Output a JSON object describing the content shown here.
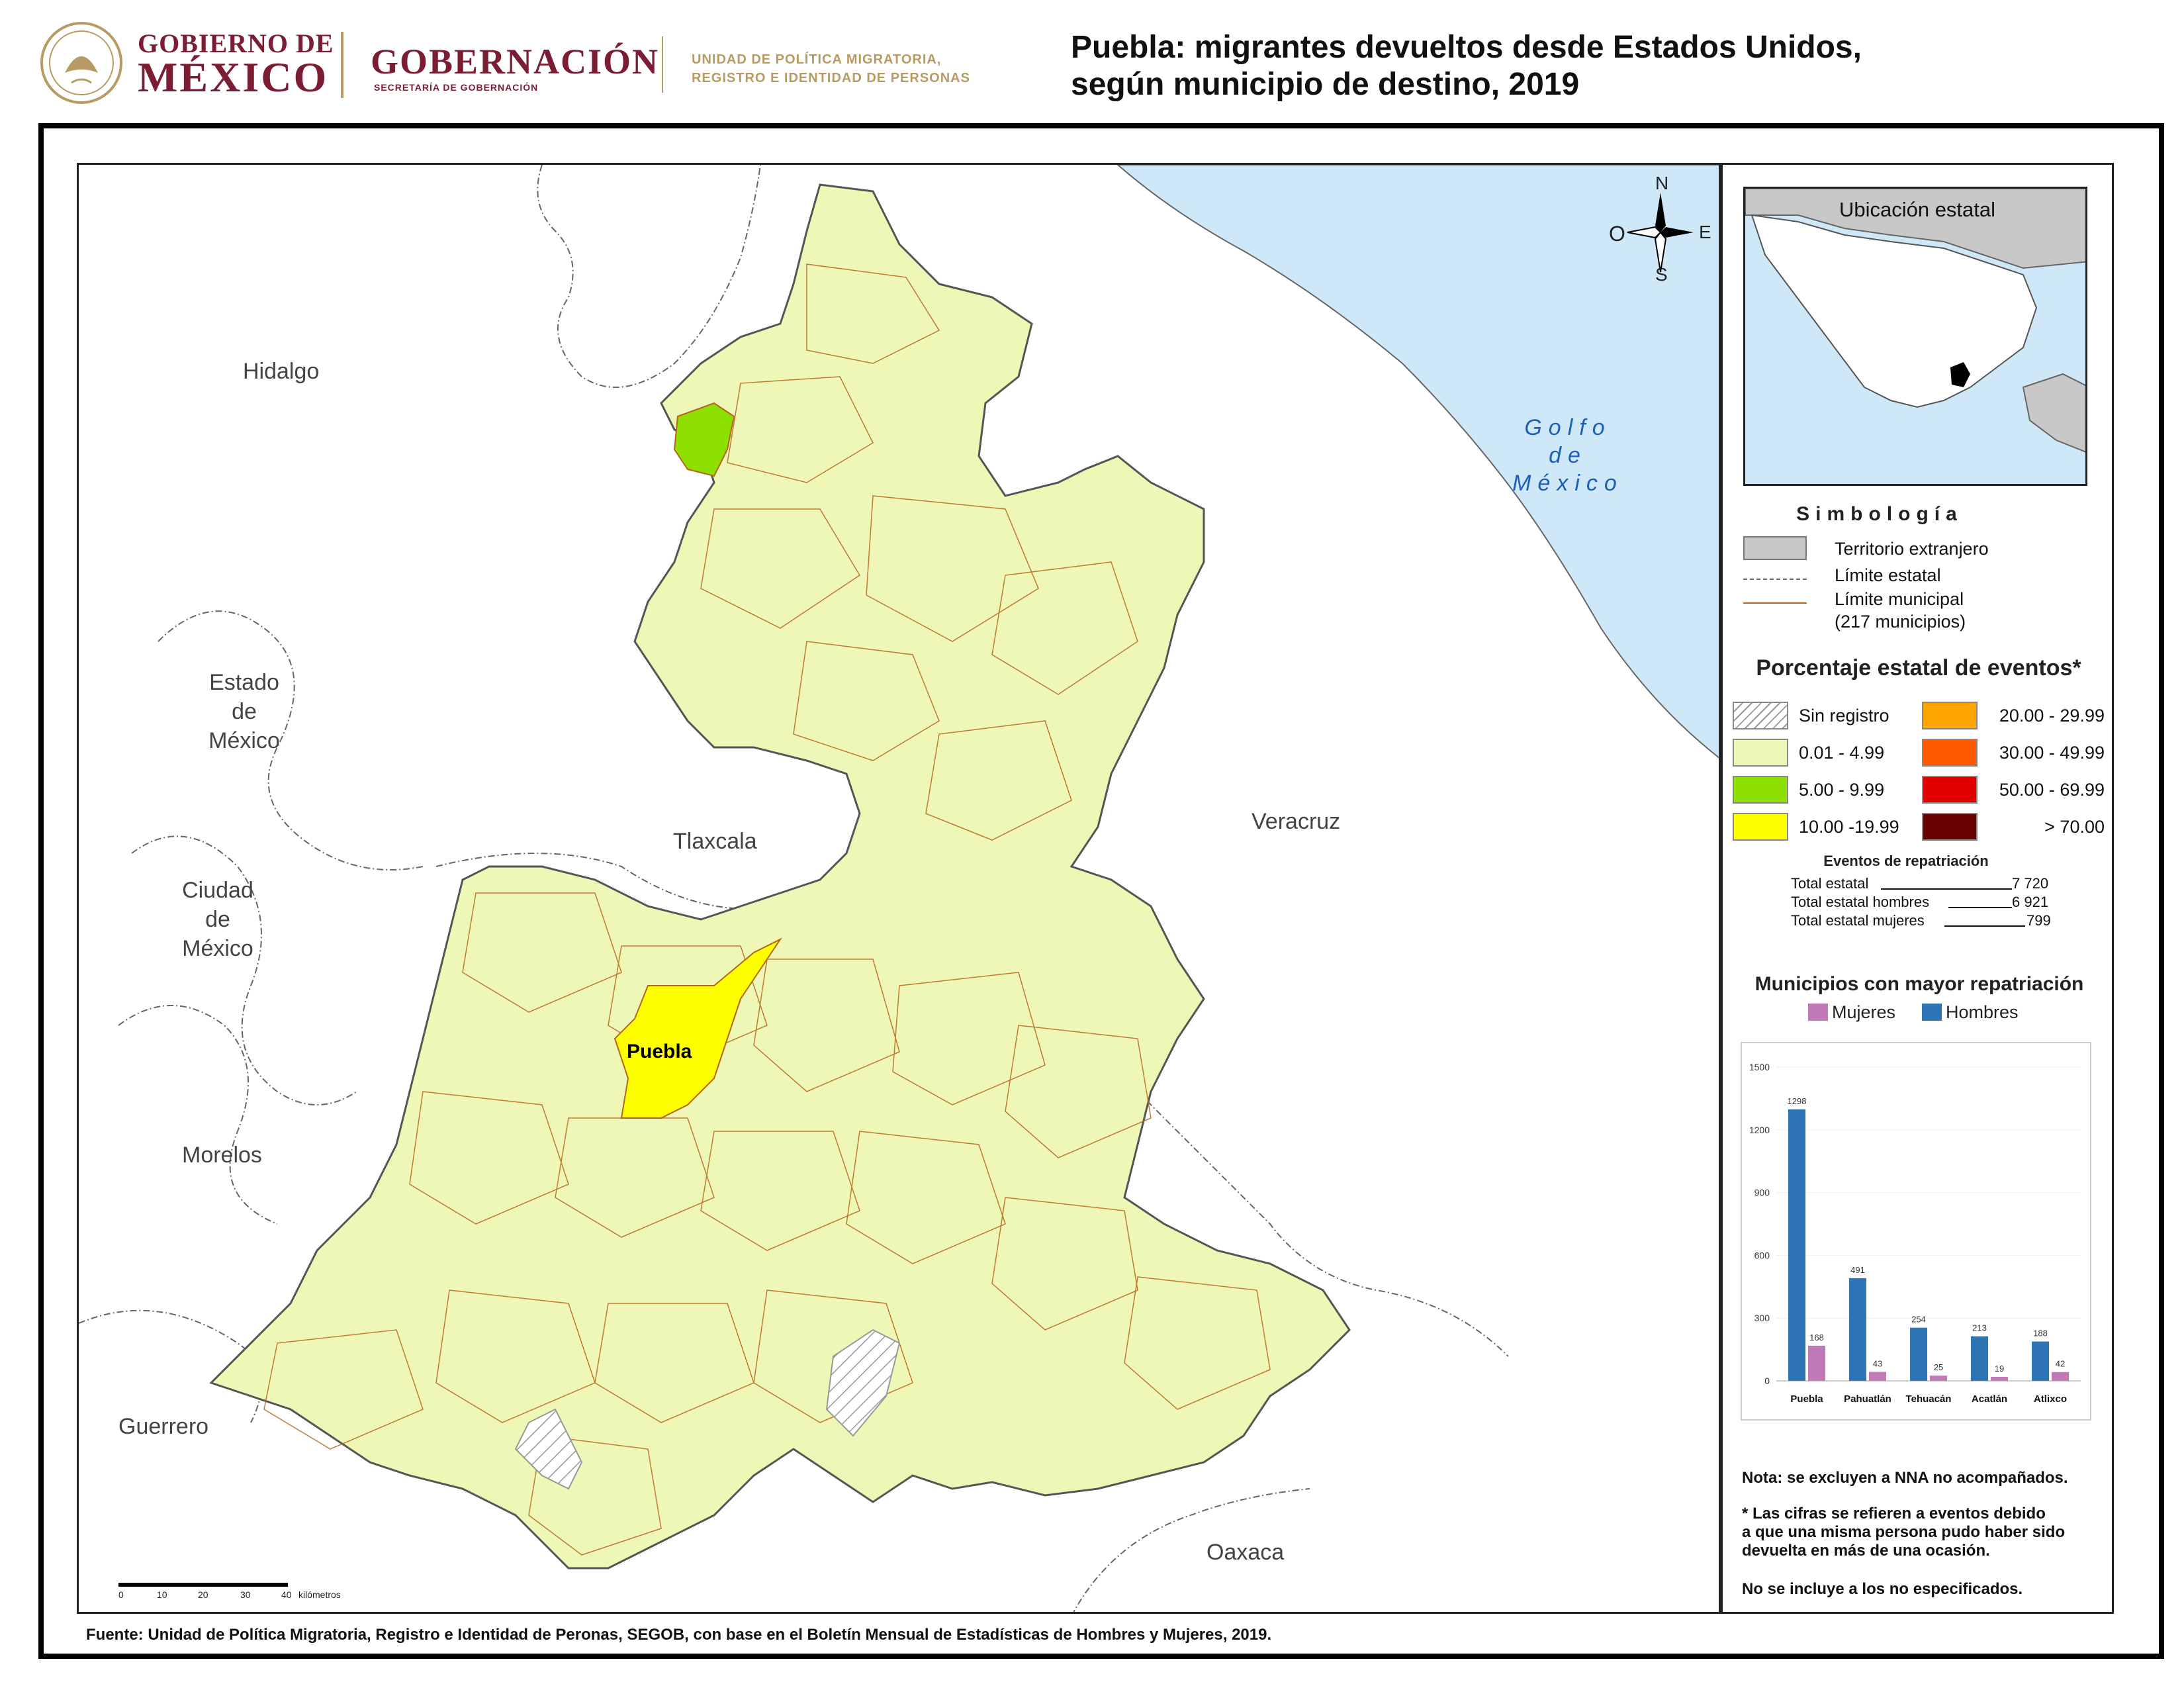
{
  "header": {
    "gob_line1": "GOBIERNO DE",
    "gob_line2": "MÉXICO",
    "gobernacion": "GOBERNACIÓN",
    "secretaria": "SECRETARÍA DE GOBERNACIÓN",
    "upm_line1": "UNIDAD DE POLÍTICA MIGRATORIA,",
    "upm_line2": "REGISTRO E IDENTIDAD DE PERSONAS",
    "title_line1": "Puebla: migrantes devueltos desde Estados Unidos,",
    "title_line2": "según municipio de destino, 2019"
  },
  "map": {
    "state_labels": {
      "hidalgo": "Hidalgo",
      "edomex_1": "Estado",
      "edomex_2": "de",
      "edomex_3": "México",
      "cdmx_1": "Ciudad",
      "cdmx_2": "de",
      "cdmx_3": "México",
      "morelos": "Morelos",
      "guerrero": "Guerrero",
      "tlaxcala": "Tlaxcala",
      "veracruz": "Veracruz",
      "oaxaca": "Oaxaca",
      "puebla": "Puebla"
    },
    "gulf_1": "Golfo",
    "gulf_2": "de",
    "gulf_3": "México",
    "compass": {
      "n": "N",
      "s": "S",
      "e": "E",
      "o": "O"
    },
    "scale": {
      "ticks": [
        "0",
        "10",
        "20",
        "30",
        "40"
      ],
      "unit": "kilómetros"
    },
    "colors": {
      "state_fill": "#eef7b5",
      "muni_border": "#b5651d",
      "water": "#cfe8f7",
      "green": "#8ee000",
      "yellow": "#ffff00"
    }
  },
  "side": {
    "location_title": "Ubicación estatal",
    "simbologia_title": "Simbología",
    "simbologia": {
      "foreign": "Territorio extranjero",
      "state_limit": "Límite estatal",
      "muni_limit": "Límite municipal",
      "muni_count": "(217 municipios)"
    },
    "pct_title": "Porcentaje estatal de eventos*",
    "classes": [
      {
        "label": "Sin registro",
        "color": "hatch"
      },
      {
        "label": "0.01  - 4.99",
        "color": "#eef7b5"
      },
      {
        "label": "5.00  - 9.99",
        "color": "#8ee000"
      },
      {
        "label": "10.00 -19.99",
        "color": "#ffff00"
      },
      {
        "label": "20.00 - 29.99",
        "color": "#ffa500"
      },
      {
        "label": "30.00 - 49.99",
        "color": "#ff5a00"
      },
      {
        "label": "50.00 - 69.99",
        "color": "#e00000"
      },
      {
        "label": "> 70.00",
        "color": "#6b0000"
      }
    ],
    "events_title": "Eventos de repatriación",
    "events": {
      "total_label": "Total estatal",
      "total_value": "7 720",
      "men_label": "Total estatal hombres",
      "men_value": "6 921",
      "women_label": "Total estatal mujeres",
      "women_value": "799"
    },
    "chart_title": "Municipios con mayor repatriación",
    "notes": {
      "n1": "Nota: se excluyen a NNA no acompañados.",
      "n2a": "* Las cifras se refieren a eventos debido",
      "n2b": "a que una misma persona pudo haber sido",
      "n2c": "devuelta en más de una ocasión.",
      "n3": "No se incluye a los no especificados."
    }
  },
  "chart_data": {
    "type": "bar",
    "categories": [
      "Puebla",
      "Pahuatlán",
      "Tehuacán",
      "Acatlán",
      "Atlixco"
    ],
    "series": [
      {
        "name": "Hombres",
        "color": "#2e75b6",
        "values": [
          1298,
          491,
          254,
          213,
          188
        ]
      },
      {
        "name": "Mujeres",
        "color": "#c07ab8",
        "values": [
          168,
          43,
          25,
          19,
          42
        ]
      }
    ],
    "ylim": [
      0,
      1500
    ],
    "yticks": [
      "0",
      "300",
      "600",
      "900",
      "1200",
      "1500"
    ],
    "legend_order": [
      "Mujeres",
      "Hombres"
    ]
  },
  "footer": "Fuente: Unidad de Política Migratoria, Registro e Identidad de Peronas, SEGOB, con base en el Boletín Mensual de Estadísticas de Hombres y Mujeres, 2019."
}
